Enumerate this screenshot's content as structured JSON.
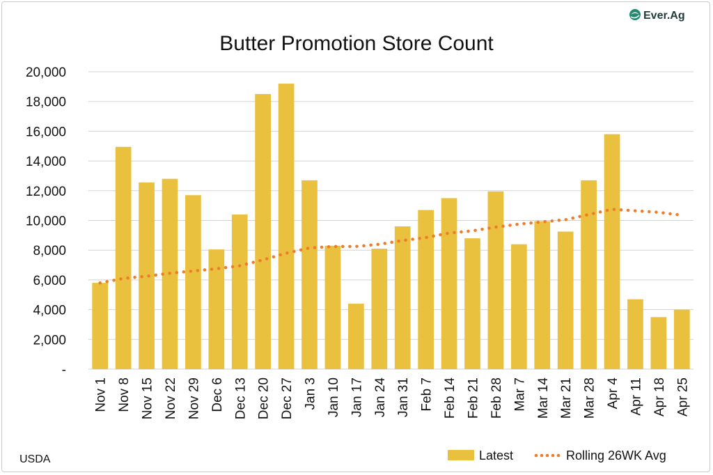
{
  "chart_data": {
    "type": "bar",
    "title": "Butter Promotion Store Count",
    "categories": [
      "Nov 1",
      "Nov 8",
      "Nov 15",
      "Nov 22",
      "Nov 29",
      "Dec 6",
      "Dec 13",
      "Dec 20",
      "Dec 27",
      "Jan 3",
      "Jan 10",
      "Jan 17",
      "Jan 24",
      "Jan 31",
      "Feb 7",
      "Feb 14",
      "Feb 21",
      "Feb 28",
      "Mar 7",
      "Mar 14",
      "Mar 21",
      "Mar 28",
      "Apr 4",
      "Apr 11",
      "Apr 18",
      "Apr 25"
    ],
    "series": [
      {
        "name": "Latest",
        "type": "bar",
        "color": "#E9C13E",
        "values": [
          5800,
          14950,
          12550,
          12800,
          11700,
          8050,
          10400,
          18500,
          19200,
          12700,
          8300,
          4400,
          8100,
          9600,
          10700,
          11500,
          8800,
          11950,
          8400,
          9950,
          9250,
          12700,
          15800,
          4700,
          3500,
          4000
        ]
      },
      {
        "name": "Rolling 26WK Avg",
        "type": "line",
        "style": "dotted",
        "color": "#EE7D2A",
        "values": [
          5800,
          6100,
          6250,
          6450,
          6600,
          6750,
          6950,
          7350,
          7800,
          8150,
          8250,
          8250,
          8400,
          8650,
          8850,
          9150,
          9300,
          9550,
          9750,
          9900,
          10050,
          10400,
          10750,
          10650,
          10550,
          10350
        ]
      }
    ],
    "ylim": [
      0,
      20000
    ],
    "yticks": [
      0,
      2000,
      4000,
      6000,
      8000,
      10000,
      12000,
      14000,
      16000,
      18000,
      20000
    ],
    "ytick_labels": [
      "-",
      "2,000",
      "4,000",
      "6,000",
      "8,000",
      "10,000",
      "12,000",
      "14,000",
      "16,000",
      "18,000",
      "20,000"
    ],
    "grid": true,
    "legend": "bottom-right"
  },
  "source": "USDA",
  "logo": {
    "text": "Ever.Ag",
    "icon": "ever-ag-leaf-icon"
  }
}
